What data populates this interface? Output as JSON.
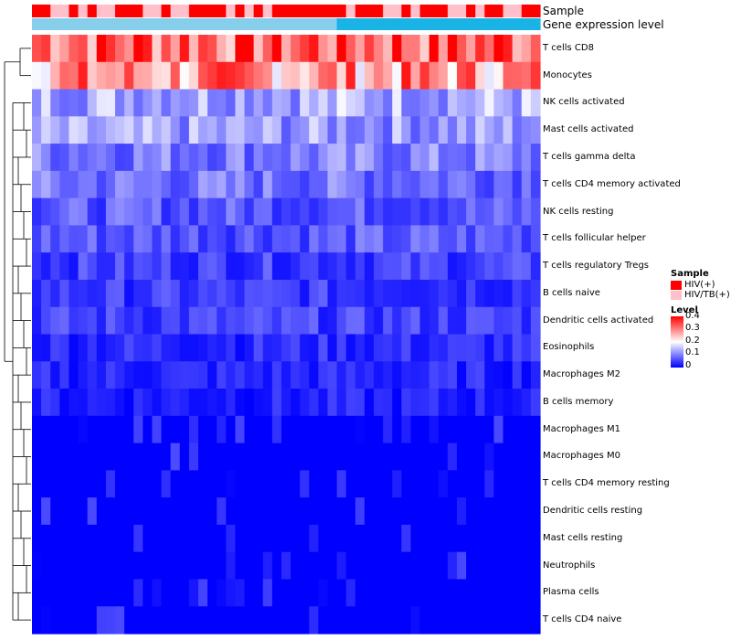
{
  "chart_data": {
    "type": "heatmap",
    "title": "",
    "annotations": {
      "sample_track_label": "Sample",
      "expression_track_label": "Gene expression level",
      "sample_groups": [
        "HIV(+)",
        "HIV(+)",
        "HIV/TB(+)",
        "HIV/TB(+)",
        "HIV(+)",
        "HIV/TB(+)",
        "HIV(+)",
        "HIV/TB(+)",
        "HIV/TB(+)",
        "HIV(+)",
        "HIV(+)",
        "HIV(+)",
        "HIV/TB(+)",
        "HIV/TB(+)",
        "HIV(+)",
        "HIV/TB(+)",
        "HIV/TB(+)",
        "HIV(+)",
        "HIV(+)",
        "HIV(+)",
        "HIV(+)",
        "HIV/TB(+)",
        "HIV(+)",
        "HIV/TB(+)",
        "HIV(+)",
        "HIV/TB(+)",
        "HIV(+)",
        "HIV(+)",
        "HIV(+)",
        "HIV(+)",
        "HIV(+)",
        "HIV(+)",
        "HIV(+)",
        "HIV(+)",
        "HIV/TB(+)",
        "HIV(+)",
        "HIV(+)",
        "HIV(+)",
        "HIV/TB(+)",
        "HIV/TB(+)",
        "HIV(+)",
        "HIV/TB(+)",
        "HIV(+)",
        "HIV(+)",
        "HIV(+)",
        "HIV/TB(+)",
        "HIV/TB(+)",
        "HIV(+)",
        "HIV/TB(+)",
        "HIV(+)",
        "HIV(+)",
        "HIV/TB(+)",
        "HIV/TB(+)",
        "HIV(+)",
        "HIV(+)"
      ],
      "expression_split_index": 33
    },
    "rows": [
      "T cells CD8",
      "Monocytes",
      "NK cells activated",
      "Mast cells activated",
      "T cells gamma delta",
      "T cells CD4 memory activated",
      "NK cells resting",
      "T cells follicular helper",
      "T cells regulatory  Tregs",
      "B cells naive",
      "Dendritic cells activated",
      "Eosinophils",
      "Macrophages M2",
      "B cells memory",
      "Macrophages M1",
      "Macrophages M0",
      "T cells CD4 memory resting",
      "Dendritic cells resting",
      "Mast cells resting",
      "Neutrophils",
      "Plasma cells",
      "T cells CD4 naive"
    ],
    "row_means": [
      0.34,
      0.28,
      0.14,
      0.12,
      0.1,
      0.09,
      0.07,
      0.07,
      0.05,
      0.045,
      0.05,
      0.035,
      0.03,
      0.025,
      0.015,
      0.015,
      0.008,
      0.008,
      0.004,
      0.002,
      0.012,
      0.008
    ],
    "num_samples": 55,
    "color_scale": {
      "min": 0,
      "mid": 0.2,
      "max": 0.4,
      "low": "#0000ff",
      "midcolor": "#ffffff",
      "high": "#ff0000"
    },
    "legend": {
      "sample_title": "Sample",
      "sample_entries": [
        {
          "label": "HIV(+)",
          "color": "#ff0000"
        },
        {
          "label": "HIV/TB(+)",
          "color": "#ffc0cb"
        }
      ],
      "level_title": "Level",
      "level_ticks": [
        "0.4",
        "0.3",
        "0.2",
        "0.1",
        "0"
      ],
      "placement": "right"
    },
    "expression_colors": {
      "high": "#87ceeb",
      "low": "#1ab3e6"
    },
    "dendrogram": "row dendrogram on left"
  }
}
